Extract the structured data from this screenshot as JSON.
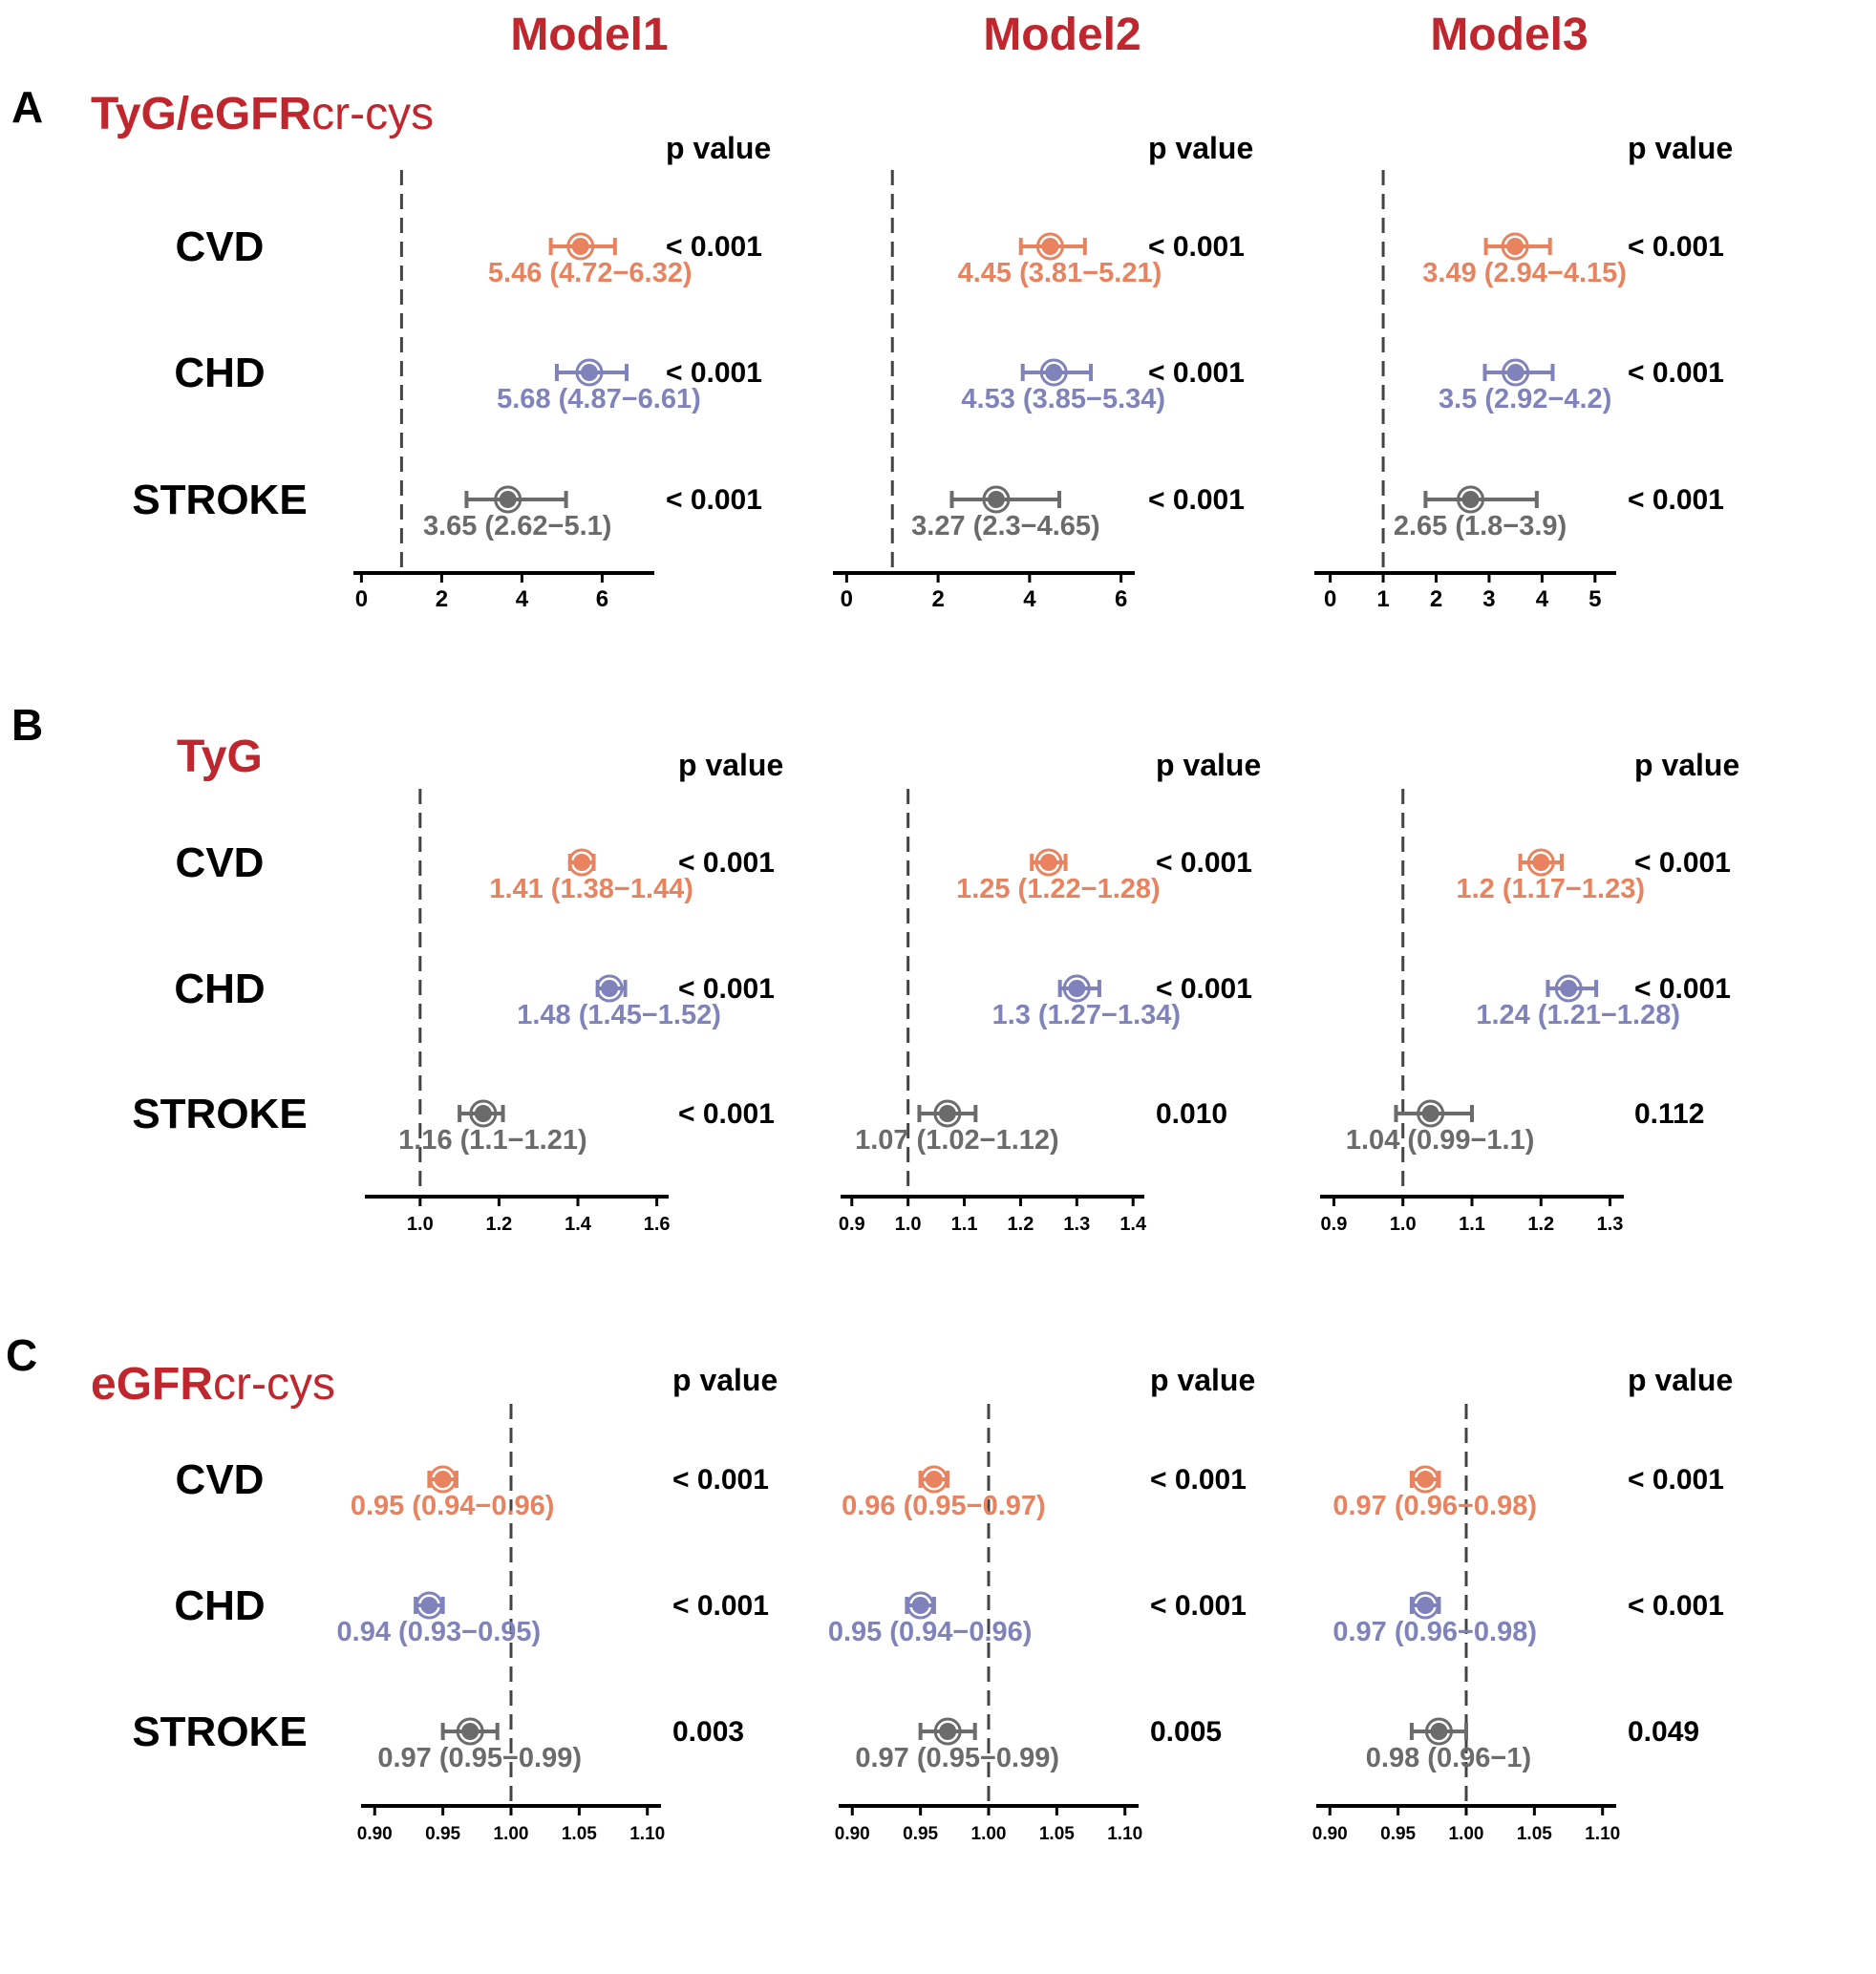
{
  "models": [
    "Model1",
    "Model2",
    "Model3"
  ],
  "p_header": "p value",
  "colors": {
    "title": "#c0262d",
    "CVD": "#e9825e",
    "CHD": "#8083bb",
    "STROKE": "#6b6b6b",
    "ref_line": "#444444"
  },
  "sections": [
    {
      "letter": "A",
      "title_bold": "TyG/eGFR",
      "title_rest": "cr-cys",
      "rows": [
        "CVD",
        "CHD",
        "STROKE"
      ],
      "panels": [
        {
          "ticks": [
            "0",
            "2",
            "4",
            "6"
          ],
          "tick_values": [
            0,
            2,
            4,
            6
          ],
          "ref": 1,
          "items": [
            {
              "label": "5.46 (4.72−6.32)",
              "est": 5.46,
              "lo": 4.72,
              "hi": 6.32,
              "p": "< 0.001"
            },
            {
              "label": "5.68 (4.87−6.61)",
              "est": 5.68,
              "lo": 4.87,
              "hi": 6.61,
              "p": "< 0.001"
            },
            {
              "label": "3.65 (2.62−5.1)",
              "est": 3.65,
              "lo": 2.62,
              "hi": 5.1,
              "p": "< 0.001"
            }
          ]
        },
        {
          "ticks": [
            "0",
            "2",
            "4",
            "6"
          ],
          "tick_values": [
            0,
            2,
            4,
            6
          ],
          "ref": 1,
          "items": [
            {
              "label": "4.45 (3.81−5.21)",
              "est": 4.45,
              "lo": 3.81,
              "hi": 5.21,
              "p": "< 0.001"
            },
            {
              "label": "4.53 (3.85−5.34)",
              "est": 4.53,
              "lo": 3.85,
              "hi": 5.34,
              "p": "< 0.001"
            },
            {
              "label": "3.27 (2.3−4.65)",
              "est": 3.27,
              "lo": 2.3,
              "hi": 4.65,
              "p": "< 0.001"
            }
          ]
        },
        {
          "ticks": [
            "0",
            "1",
            "2",
            "3",
            "4",
            "5"
          ],
          "tick_values": [
            0,
            1,
            2,
            3,
            4,
            5
          ],
          "ref": 1,
          "items": [
            {
              "label": "3.49 (2.94−4.15)",
              "est": 3.49,
              "lo": 2.94,
              "hi": 4.15,
              "p": "< 0.001"
            },
            {
              "label": "3.5 (2.92−4.2)",
              "est": 3.5,
              "lo": 2.92,
              "hi": 4.2,
              "p": "< 0.001"
            },
            {
              "label": "2.65 (1.8−3.9)",
              "est": 2.65,
              "lo": 1.8,
              "hi": 3.9,
              "p": "< 0.001"
            }
          ]
        }
      ]
    },
    {
      "letter": "B",
      "title_bold": "TyG",
      "title_rest": "",
      "rows": [
        "CVD",
        "CHD",
        "STROKE"
      ],
      "panels": [
        {
          "ticks": [
            "1.0",
            "1.2",
            "1.4",
            "1.6"
          ],
          "tick_values": [
            1.0,
            1.2,
            1.4,
            1.6
          ],
          "ref": 1.0,
          "items": [
            {
              "label": "1.41 (1.38−1.44)",
              "est": 1.41,
              "lo": 1.38,
              "hi": 1.44,
              "p": "< 0.001"
            },
            {
              "label": "1.48 (1.45−1.52)",
              "est": 1.48,
              "lo": 1.45,
              "hi": 1.52,
              "p": "< 0.001"
            },
            {
              "label": "1.16 (1.1−1.21)",
              "est": 1.16,
              "lo": 1.1,
              "hi": 1.21,
              "p": "< 0.001"
            }
          ]
        },
        {
          "ticks": [
            "0.9",
            "1.0",
            "1.1",
            "1.2",
            "1.3",
            "1.4"
          ],
          "tick_values": [
            0.9,
            1.0,
            1.1,
            1.2,
            1.3,
            1.4
          ],
          "ref": 1.0,
          "items": [
            {
              "label": "1.25 (1.22−1.28)",
              "est": 1.25,
              "lo": 1.22,
              "hi": 1.28,
              "p": "< 0.001"
            },
            {
              "label": "1.3 (1.27−1.34)",
              "est": 1.3,
              "lo": 1.27,
              "hi": 1.34,
              "p": "< 0.001"
            },
            {
              "label": "1.07 (1.02−1.12)",
              "est": 1.07,
              "lo": 1.02,
              "hi": 1.12,
              "p": "0.010"
            }
          ]
        },
        {
          "ticks": [
            "0.9",
            "1.0",
            "1.1",
            "1.2",
            "1.3"
          ],
          "tick_values": [
            0.9,
            1.0,
            1.1,
            1.2,
            1.3
          ],
          "ref": 1.0,
          "items": [
            {
              "label": "1.2 (1.17−1.23)",
              "est": 1.2,
              "lo": 1.17,
              "hi": 1.23,
              "p": "< 0.001"
            },
            {
              "label": "1.24 (1.21−1.28)",
              "est": 1.24,
              "lo": 1.21,
              "hi": 1.28,
              "p": "< 0.001"
            },
            {
              "label": "1.04 (0.99−1.1)",
              "est": 1.04,
              "lo": 0.99,
              "hi": 1.1,
              "p": "0.112"
            }
          ]
        }
      ]
    },
    {
      "letter": "C",
      "title_bold": "eGFR",
      "title_rest": "cr-cys",
      "rows": [
        "CVD",
        "CHD",
        "STROKE"
      ],
      "panels": [
        {
          "ticks": [
            "0.90",
            "0.95",
            "1.00",
            "1.05",
            "1.10"
          ],
          "tick_values": [
            0.9,
            0.95,
            1.0,
            1.05,
            1.1
          ],
          "ref": 1.0,
          "items": [
            {
              "label": "0.95 (0.94−0.96)",
              "est": 0.95,
              "lo": 0.94,
              "hi": 0.96,
              "p": "< 0.001"
            },
            {
              "label": "0.94 (0.93−0.95)",
              "est": 0.94,
              "lo": 0.93,
              "hi": 0.95,
              "p": "< 0.001"
            },
            {
              "label": "0.97 (0.95−0.99)",
              "est": 0.97,
              "lo": 0.95,
              "hi": 0.99,
              "p": "0.003"
            }
          ]
        },
        {
          "ticks": [
            "0.90",
            "0.95",
            "1.00",
            "1.05",
            "1.10"
          ],
          "tick_values": [
            0.9,
            0.95,
            1.0,
            1.05,
            1.1
          ],
          "ref": 1.0,
          "items": [
            {
              "label": "0.96 (0.95−0.97)",
              "est": 0.96,
              "lo": 0.95,
              "hi": 0.97,
              "p": "< 0.001"
            },
            {
              "label": "0.95 (0.94−0.96)",
              "est": 0.95,
              "lo": 0.94,
              "hi": 0.96,
              "p": "< 0.001"
            },
            {
              "label": "0.97 (0.95−0.99)",
              "est": 0.97,
              "lo": 0.95,
              "hi": 0.99,
              "p": "0.005"
            }
          ]
        },
        {
          "ticks": [
            "0.90",
            "0.95",
            "1.00",
            "1.05",
            "1.10"
          ],
          "tick_values": [
            0.9,
            0.95,
            1.0,
            1.05,
            1.1
          ],
          "ref": 1.0,
          "items": [
            {
              "label": "0.97 (0.96−0.98)",
              "est": 0.97,
              "lo": 0.96,
              "hi": 0.98,
              "p": "< 0.001"
            },
            {
              "label": "0.97 (0.96−0.98)",
              "est": 0.97,
              "lo": 0.96,
              "hi": 0.98,
              "p": "< 0.001"
            },
            {
              "label": "0.98 (0.96−1)",
              "est": 0.98,
              "lo": 0.96,
              "hi": 1.0,
              "p": "0.049"
            }
          ]
        }
      ]
    }
  ],
  "chart_data": [
    {
      "type": "forest",
      "title": "TyG/eGFRcr-cys",
      "columns": [
        "Model1",
        "Model2",
        "Model3"
      ],
      "rows": [
        "CVD",
        "CHD",
        "STROKE"
      ],
      "reference_line": 1,
      "series": [
        {
          "model": "Model1",
          "est": [
            5.46,
            5.68,
            3.65
          ],
          "lo": [
            4.72,
            4.87,
            2.62
          ],
          "hi": [
            6.32,
            6.61,
            5.1
          ],
          "p": [
            "< 0.001",
            "< 0.001",
            "< 0.001"
          ],
          "xlim": [
            -0.2,
            7.3
          ]
        },
        {
          "model": "Model2",
          "est": [
            4.45,
            4.53,
            3.27
          ],
          "lo": [
            3.81,
            3.85,
            2.3
          ],
          "hi": [
            5.21,
            5.34,
            4.65
          ],
          "p": [
            "< 0.001",
            "< 0.001",
            "< 0.001"
          ],
          "xlim": [
            -0.3,
            6.3
          ]
        },
        {
          "model": "Model3",
          "est": [
            3.49,
            3.5,
            2.65
          ],
          "lo": [
            2.94,
            2.92,
            1.8
          ],
          "hi": [
            4.15,
            4.2,
            3.9
          ],
          "p": [
            "< 0.001",
            "< 0.001",
            "< 0.001"
          ],
          "xlim": [
            -0.3,
            5.4
          ]
        }
      ]
    },
    {
      "type": "forest",
      "title": "TyG",
      "columns": [
        "Model1",
        "Model2",
        "Model3"
      ],
      "rows": [
        "CVD",
        "CHD",
        "STROKE"
      ],
      "reference_line": 1.0,
      "series": [
        {
          "model": "Model1",
          "est": [
            1.41,
            1.48,
            1.16
          ],
          "lo": [
            1.38,
            1.45,
            1.1
          ],
          "hi": [
            1.44,
            1.52,
            1.21
          ],
          "p": [
            "< 0.001",
            "< 0.001",
            "< 0.001"
          ],
          "xlim": [
            0.86,
            1.63
          ]
        },
        {
          "model": "Model2",
          "est": [
            1.25,
            1.3,
            1.07
          ],
          "lo": [
            1.22,
            1.27,
            1.02
          ],
          "hi": [
            1.28,
            1.34,
            1.12
          ],
          "p": [
            "< 0.001",
            "< 0.001",
            "0.010"
          ],
          "xlim": [
            0.88,
            1.42
          ]
        },
        {
          "model": "Model3",
          "est": [
            1.2,
            1.24,
            1.04
          ],
          "lo": [
            1.17,
            1.21,
            0.99
          ],
          "hi": [
            1.23,
            1.28,
            1.1
          ],
          "p": [
            "< 0.001",
            "< 0.001",
            "0.112"
          ],
          "xlim": [
            0.88,
            1.32
          ]
        }
      ]
    },
    {
      "type": "forest",
      "title": "eGFRcr-cys",
      "columns": [
        "Model1",
        "Model2",
        "Model3"
      ],
      "rows": [
        "CVD",
        "CHD",
        "STROKE"
      ],
      "reference_line": 1.0,
      "series": [
        {
          "model": "Model1",
          "est": [
            0.95,
            0.94,
            0.97
          ],
          "lo": [
            0.94,
            0.93,
            0.95
          ],
          "hi": [
            0.96,
            0.95,
            0.99
          ],
          "p": [
            "< 0.001",
            "< 0.001",
            "0.003"
          ],
          "xlim": [
            0.89,
            1.11
          ]
        },
        {
          "model": "Model2",
          "est": [
            0.96,
            0.95,
            0.97
          ],
          "lo": [
            0.95,
            0.94,
            0.95
          ],
          "hi": [
            0.97,
            0.96,
            0.99
          ],
          "p": [
            "< 0.001",
            "< 0.001",
            "0.005"
          ],
          "xlim": [
            0.89,
            1.11
          ]
        },
        {
          "model": "Model3",
          "est": [
            0.97,
            0.97,
            0.98
          ],
          "lo": [
            0.96,
            0.96,
            0.96
          ],
          "hi": [
            0.98,
            0.98,
            1.0
          ],
          "p": [
            "< 0.001",
            "< 0.001",
            "0.049"
          ],
          "xlim": [
            0.89,
            1.11
          ]
        }
      ]
    }
  ]
}
